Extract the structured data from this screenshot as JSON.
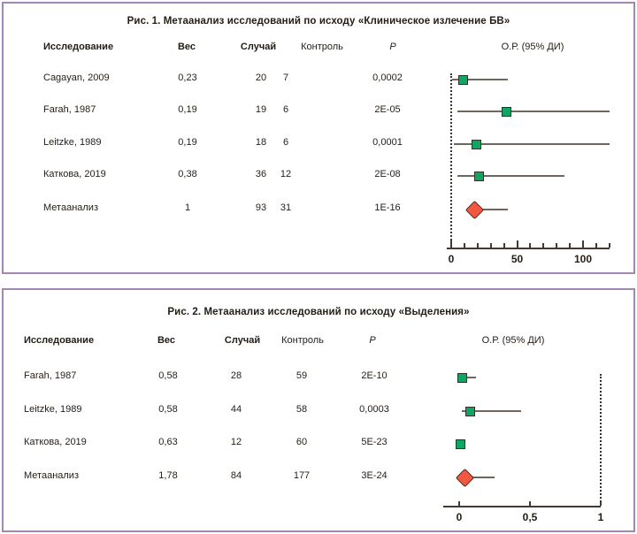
{
  "figures": [
    {
      "title": "Рис. 1. Метаанализ исследований по исходу «Клиническое излечение БВ»",
      "headers": {
        "study": "Исследование",
        "weight": "Вес",
        "cases": "Случай",
        "control": "Контроль",
        "p": "P",
        "or_ci": "О.Р. (95% ДИ)"
      },
      "rows": [
        {
          "study": "Cagayan, 2009",
          "weight": "0,23",
          "cases": "20",
          "control": "7",
          "p": "0,0002"
        },
        {
          "study": "Farah, 1987",
          "weight": "0,19",
          "cases": "19",
          "control": "6",
          "p": "2E-05"
        },
        {
          "study": "Leitzke, 1989",
          "weight": "0,19",
          "cases": "18",
          "control": "6",
          "p": "0,0001"
        },
        {
          "study": "Каткова, 2019",
          "weight": "0,38",
          "cases": "36",
          "control": "12",
          "p": "2E-08"
        },
        {
          "study": "Метаанализ",
          "weight": "1",
          "cases": "93",
          "control": "31",
          "p": "1E-16"
        }
      ]
    },
    {
      "title": "Рис. 2. Метаанализ исследований по исходу «Выделения»",
      "headers": {
        "study": "Исследование",
        "weight": "Вес",
        "cases": "Случай",
        "control": "Контроль",
        "p": "P",
        "or_ci": "О.Р. (95% ДИ)"
      },
      "rows": [
        {
          "study": "Farah, 1987",
          "weight": "0,58",
          "cases": "28",
          "control": "59",
          "p": "2E-10"
        },
        {
          "study": "Leitzke, 1989",
          "weight": "0,58",
          "cases": "44",
          "control": "58",
          "p": "0,0003"
        },
        {
          "study": "Каткова, 2019",
          "weight": "0,63",
          "cases": "12",
          "control": "60",
          "p": "5E-23"
        },
        {
          "study": "Метаанализ",
          "weight": "1,78",
          "cases": "84",
          "control": "177",
          "p": "3E-24"
        }
      ]
    }
  ],
  "chart_data": [
    {
      "type": "scatter",
      "variant": "forest-plot",
      "title": "Рис. 1. Метаанализ исследований по исходу «Клиническое излечение БВ»",
      "xlabel": "О.Р. (95% ДИ)",
      "xlim": [
        0,
        120
      ],
      "ref_line_x": 0,
      "grid": false,
      "xticks": [
        {
          "v": 0,
          "label": "0"
        },
        {
          "v": 10
        },
        {
          "v": 20
        },
        {
          "v": 30
        },
        {
          "v": 40
        },
        {
          "v": 50,
          "label": "50"
        },
        {
          "v": 60
        },
        {
          "v": 70
        },
        {
          "v": 80
        },
        {
          "v": 90
        },
        {
          "v": 100,
          "label": "100"
        },
        {
          "v": 110
        },
        {
          "v": 120
        }
      ],
      "points": [
        {
          "study": "Cagayan, 2009",
          "or": 9,
          "ci": [
            1,
            43
          ],
          "marker": "square"
        },
        {
          "study": "Farah, 1987",
          "or": 42,
          "ci": [
            5,
            120
          ],
          "marker": "square"
        },
        {
          "study": "Leitzke, 1989",
          "or": 19,
          "ci": [
            2,
            120
          ],
          "marker": "square"
        },
        {
          "study": "Каткова, 2019",
          "or": 21,
          "ci": [
            5,
            86
          ],
          "marker": "square"
        },
        {
          "study": "Метаанализ",
          "or": 18,
          "ci": [
            12,
            43
          ],
          "marker": "diamond"
        }
      ]
    },
    {
      "type": "scatter",
      "variant": "forest-plot",
      "title": "Рис. 2. Метаанализ исследований по исходу «Выделения»",
      "xlabel": "О.Р. (95% ДИ)",
      "xlim": [
        0,
        1
      ],
      "ref_line_x": 1,
      "grid": false,
      "xticks": [
        {
          "v": 0,
          "label": "0"
        },
        {
          "v": 0.5,
          "label": "0,5"
        },
        {
          "v": 1,
          "label": "1"
        }
      ],
      "points": [
        {
          "study": "Farah, 1987",
          "or": 0.02,
          "ci": [
            0,
            0.12
          ],
          "marker": "square"
        },
        {
          "study": "Leitzke, 1989",
          "or": 0.08,
          "ci": [
            0.02,
            0.44
          ],
          "marker": "square"
        },
        {
          "study": "Каткова, 2019",
          "or": 0.01,
          "ci": [
            0,
            0.02
          ],
          "marker": "square"
        },
        {
          "study": "Метаанализ",
          "or": 0.04,
          "ci": [
            0,
            0.25
          ],
          "marker": "diamond"
        }
      ]
    }
  ],
  "colors": {
    "panel_border": "#a485b4",
    "study_marker": "#10a562",
    "meta_marker": "#f2573f",
    "ci_line": "#6f675c",
    "axis": "#423a30",
    "text": "#241d15"
  }
}
